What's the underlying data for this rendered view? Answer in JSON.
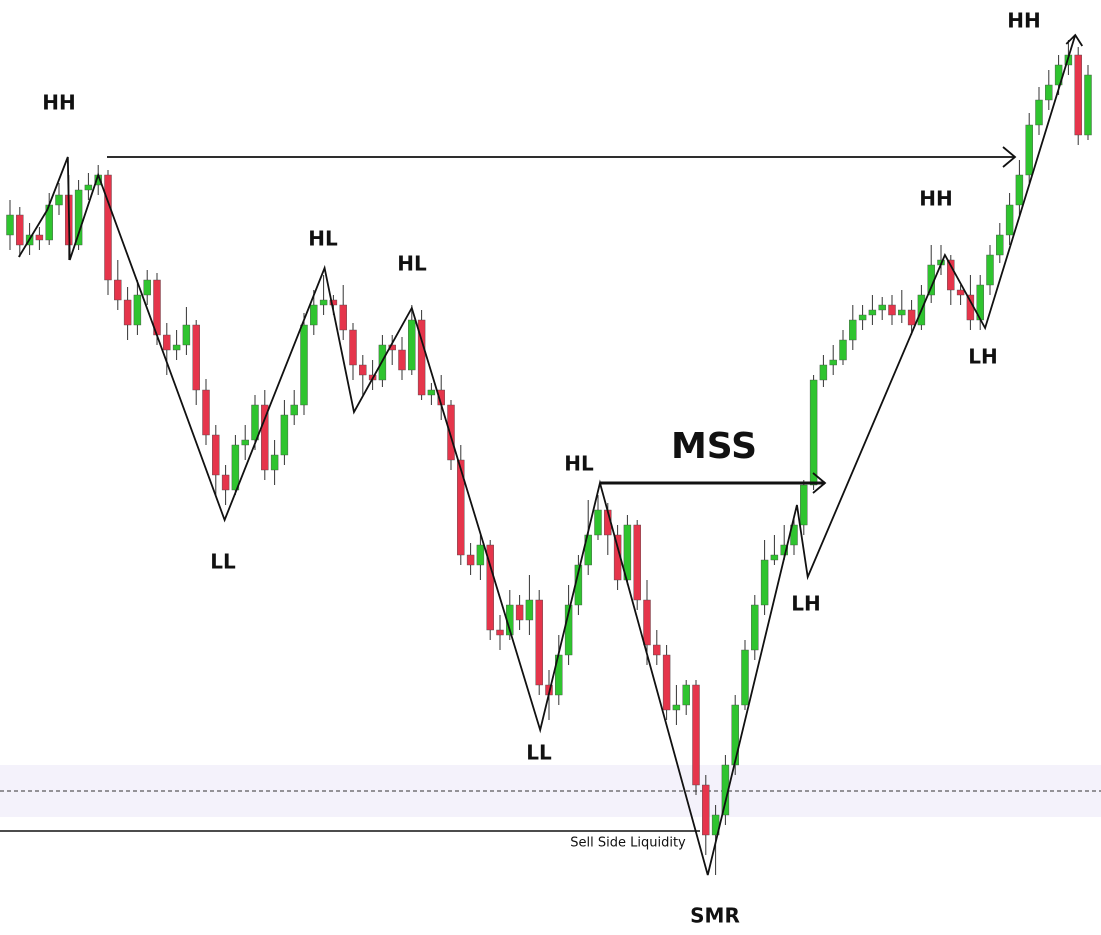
{
  "chart_data": {
    "type": "candlestick",
    "ylim": [
      0,
      935
    ],
    "up_color": "#2fc42f",
    "down_color": "#e5354b",
    "wick_color": "#333333",
    "open": [
      700,
      720,
      690,
      700,
      695,
      730,
      740,
      690,
      745,
      750,
      760,
      655,
      635,
      610,
      640,
      655,
      600,
      585,
      590,
      610,
      545,
      500,
      460,
      445,
      490,
      495,
      530,
      465,
      480,
      520,
      530,
      610,
      630,
      635,
      630,
      605,
      570,
      560,
      555,
      590,
      585,
      565,
      615,
      540,
      545,
      530,
      475,
      380,
      370,
      390,
      305,
      300,
      330,
      315,
      335,
      250,
      240,
      280,
      330,
      370,
      400,
      425,
      400,
      355,
      410,
      335,
      290,
      280,
      225,
      230,
      250,
      150,
      100,
      120,
      170,
      230,
      285,
      330,
      375,
      380,
      390,
      410,
      450,
      555,
      570,
      575,
      595,
      615,
      620,
      625,
      630,
      620,
      625,
      610,
      640,
      670,
      675,
      645,
      640,
      615,
      650,
      680,
      700,
      730,
      760,
      810,
      835,
      850,
      870,
      880,
      800
    ],
    "high": [
      735,
      728,
      712,
      708,
      742,
      752,
      760,
      755,
      762,
      770,
      765,
      675,
      648,
      655,
      665,
      662,
      612,
      605,
      628,
      615,
      556,
      510,
      470,
      500,
      510,
      540,
      545,
      495,
      535,
      545,
      622,
      645,
      660,
      640,
      650,
      612,
      580,
      575,
      600,
      600,
      598,
      630,
      625,
      552,
      560,
      535,
      490,
      392,
      400,
      395,
      320,
      345,
      340,
      360,
      345,
      265,
      300,
      350,
      380,
      435,
      440,
      432,
      410,
      420,
      415,
      355,
      305,
      290,
      250,
      255,
      255,
      160,
      130,
      180,
      240,
      295,
      340,
      395,
      400,
      410,
      420,
      455,
      560,
      580,
      590,
      605,
      630,
      630,
      640,
      638,
      640,
      645,
      635,
      650,
      690,
      690,
      680,
      650,
      660,
      660,
      690,
      712,
      742,
      775,
      822,
      848,
      865,
      880,
      895,
      888,
      870
    ],
    "low": [
      685,
      678,
      680,
      685,
      690,
      720,
      675,
      685,
      735,
      740,
      640,
      625,
      595,
      600,
      630,
      590,
      560,
      575,
      580,
      530,
      490,
      440,
      430,
      440,
      475,
      485,
      455,
      450,
      470,
      510,
      520,
      600,
      620,
      620,
      595,
      555,
      540,
      545,
      548,
      570,
      555,
      560,
      535,
      530,
      515,
      465,
      370,
      360,
      355,
      295,
      285,
      295,
      305,
      300,
      240,
      215,
      230,
      270,
      320,
      360,
      395,
      380,
      345,
      350,
      325,
      270,
      270,
      215,
      210,
      220,
      140,
      80,
      60,
      110,
      160,
      225,
      275,
      320,
      370,
      375,
      380,
      400,
      445,
      548,
      560,
      570,
      585,
      605,
      610,
      615,
      610,
      612,
      600,
      605,
      632,
      660,
      630,
      630,
      605,
      605,
      640,
      672,
      690,
      720,
      752,
      800,
      825,
      840,
      860,
      790,
      795
    ],
    "close": [
      720,
      690,
      700,
      695,
      730,
      740,
      690,
      745,
      750,
      760,
      655,
      635,
      610,
      640,
      655,
      600,
      585,
      590,
      610,
      545,
      500,
      460,
      445,
      490,
      495,
      530,
      465,
      480,
      520,
      530,
      610,
      630,
      635,
      630,
      605,
      570,
      560,
      555,
      590,
      585,
      565,
      615,
      540,
      545,
      530,
      475,
      380,
      370,
      390,
      305,
      300,
      330,
      315,
      335,
      250,
      240,
      280,
      330,
      370,
      400,
      425,
      400,
      355,
      410,
      335,
      290,
      280,
      225,
      230,
      250,
      150,
      100,
      120,
      170,
      230,
      285,
      330,
      375,
      380,
      390,
      410,
      450,
      555,
      570,
      575,
      595,
      615,
      620,
      625,
      630,
      620,
      625,
      610,
      640,
      670,
      675,
      645,
      640,
      615,
      650,
      680,
      700,
      730,
      760,
      810,
      835,
      850,
      870,
      880,
      800,
      860
    ],
    "zigzag": {
      "x": [
        0.9,
        3.8,
        5.9,
        6.1,
        9.0,
        21.9,
        32.1,
        35.1,
        41.0,
        54.1,
        60.2,
        71.2,
        80.3,
        81.4,
        95.4,
        99.5,
        108.7
      ],
      "values": [
        678,
        725,
        778,
        675,
        760,
        415,
        667,
        523,
        627,
        205,
        452,
        60,
        430,
        358,
        680,
        607,
        900
      ]
    },
    "annotations": [
      "HH",
      "HH",
      "HH",
      "HL",
      "HL",
      "HL",
      "LL",
      "LL",
      "LH",
      "LH",
      "SMR"
    ],
    "mss_label": "MSS",
    "liquidity": {
      "label": "Sell Side Liquidity",
      "value": 104
    },
    "zone": {
      "from": 118,
      "to": 170,
      "mid": 144
    }
  }
}
